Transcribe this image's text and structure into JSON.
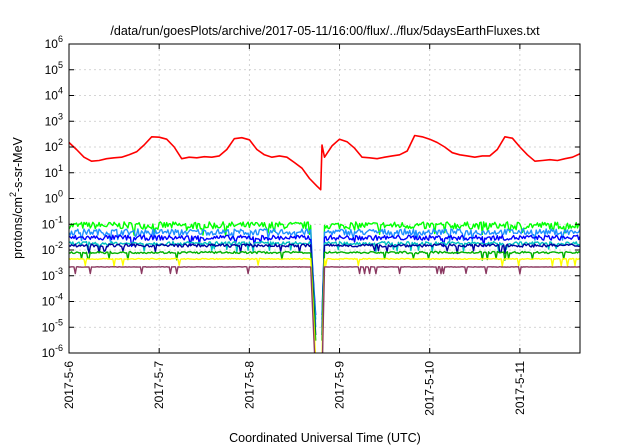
{
  "chart_data": {
    "type": "line",
    "title": "/data/run/goesPlots/archive/2017-05-11/16:00/flux/../flux/5daysEarthFluxes.txt",
    "xlabel": "Coordinated Universal Time (UTC)",
    "ylabel": {
      "prefix": "protons/cm",
      "sup": "2",
      "suffix": "-s-sr-MeV"
    },
    "y_scale": "log",
    "ylim": [
      1e-06,
      1000000.0
    ],
    "y_ticks": [
      {
        "value": 1e-06,
        "base": "10",
        "exp": "-6"
      },
      {
        "value": 1e-05,
        "base": "10",
        "exp": "-5"
      },
      {
        "value": 0.0001,
        "base": "10",
        "exp": "-4"
      },
      {
        "value": 0.001,
        "base": "10",
        "exp": "-3"
      },
      {
        "value": 0.01,
        "base": "10",
        "exp": "-2"
      },
      {
        "value": 0.1,
        "base": "10",
        "exp": "-1"
      },
      {
        "value": 1,
        "base": "10",
        "exp": "0"
      },
      {
        "value": 10,
        "base": "10",
        "exp": "1"
      },
      {
        "value": 100,
        "base": "10",
        "exp": "2"
      },
      {
        "value": 1000,
        "base": "10",
        "exp": "3"
      },
      {
        "value": 10000,
        "base": "10",
        "exp": "4"
      },
      {
        "value": 100000,
        "base": "10",
        "exp": "5"
      },
      {
        "value": 1000000,
        "base": "10",
        "exp": "6"
      }
    ],
    "x_range": [
      "2017-05-06 00:00",
      "2017-05-11 16:00"
    ],
    "x_ticks": [
      "2017-5-6",
      "2017-5-7",
      "2017-5-8",
      "2017-5-9",
      "2017-5-10",
      "2017-5-11"
    ],
    "grid": true,
    "gap": {
      "start": "2017-05-08 16:30",
      "end": "2017-05-08 19:20"
    },
    "series": [
      {
        "color": "#ff0000",
        "values": [
          [
            "2017-05-06 00:00",
            150
          ],
          [
            "2017-05-06 02:00",
            80
          ],
          [
            "2017-05-06 04:00",
            40
          ],
          [
            "2017-05-06 06:00",
            28
          ],
          [
            "2017-05-06 08:00",
            30
          ],
          [
            "2017-05-06 10:00",
            35
          ],
          [
            "2017-05-06 12:00",
            38
          ],
          [
            "2017-05-06 14:00",
            40
          ],
          [
            "2017-05-06 16:00",
            50
          ],
          [
            "2017-05-06 18:00",
            65
          ],
          [
            "2017-05-06 20:00",
            120
          ],
          [
            "2017-05-06 22:00",
            250
          ],
          [
            "2017-05-07 00:00",
            240
          ],
          [
            "2017-05-07 02:00",
            200
          ],
          [
            "2017-05-07 04:00",
            100
          ],
          [
            "2017-05-07 06:00",
            35
          ],
          [
            "2017-05-07 08:00",
            40
          ],
          [
            "2017-05-07 10:00",
            38
          ],
          [
            "2017-05-07 12:00",
            42
          ],
          [
            "2017-05-07 14:00",
            40
          ],
          [
            "2017-05-07 16:00",
            45
          ],
          [
            "2017-05-07 18:00",
            80
          ],
          [
            "2017-05-07 20:00",
            210
          ],
          [
            "2017-05-07 22:00",
            230
          ],
          [
            "2017-05-08 00:00",
            190
          ],
          [
            "2017-05-08 02:00",
            80
          ],
          [
            "2017-05-08 04:00",
            50
          ],
          [
            "2017-05-08 06:00",
            40
          ],
          [
            "2017-05-08 08:00",
            45
          ],
          [
            "2017-05-08 10:00",
            40
          ],
          [
            "2017-05-08 12:00",
            25
          ],
          [
            "2017-05-08 14:00",
            15
          ],
          [
            "2017-05-08 16:00",
            6
          ],
          [
            "2017-05-08 18:00",
            3
          ],
          [
            "2017-05-08 19:00",
            2.2
          ],
          [
            "2017-05-08 19:20",
            120
          ],
          [
            "2017-05-08 20:00",
            40
          ],
          [
            "2017-05-08 22:00",
            110
          ],
          [
            "2017-05-09 00:00",
            200
          ],
          [
            "2017-05-09 02:00",
            160
          ],
          [
            "2017-05-09 04:00",
            90
          ],
          [
            "2017-05-09 06:00",
            40
          ],
          [
            "2017-05-09 08:00",
            38
          ],
          [
            "2017-05-09 10:00",
            35
          ],
          [
            "2017-05-09 12:00",
            40
          ],
          [
            "2017-05-09 14:00",
            45
          ],
          [
            "2017-05-09 16:00",
            50
          ],
          [
            "2017-05-09 18:00",
            70
          ],
          [
            "2017-05-09 20:00",
            280
          ],
          [
            "2017-05-09 22:00",
            250
          ],
          [
            "2017-05-10 00:00",
            200
          ],
          [
            "2017-05-10 02:00",
            150
          ],
          [
            "2017-05-10 04:00",
            100
          ],
          [
            "2017-05-10 06:00",
            60
          ],
          [
            "2017-05-10 08:00",
            50
          ],
          [
            "2017-05-10 10:00",
            45
          ],
          [
            "2017-05-10 12:00",
            40
          ],
          [
            "2017-05-10 14:00",
            45
          ],
          [
            "2017-05-10 16:00",
            45
          ],
          [
            "2017-05-10 18:00",
            80
          ],
          [
            "2017-05-10 20:00",
            250
          ],
          [
            "2017-05-10 22:00",
            220
          ],
          [
            "2017-05-11 00:00",
            100
          ],
          [
            "2017-05-11 02:00",
            50
          ],
          [
            "2017-05-11 04:00",
            28
          ],
          [
            "2017-05-11 06:00",
            30
          ],
          [
            "2017-05-11 08:00",
            32
          ],
          [
            "2017-05-11 10:00",
            30
          ],
          [
            "2017-05-11 12:00",
            35
          ],
          [
            "2017-05-11 14:00",
            40
          ],
          [
            "2017-05-11 16:00",
            55
          ]
        ]
      },
      {
        "color": "#00ff00",
        "level": 0.09,
        "noise": 0.07,
        "decay_to": 1e-07
      },
      {
        "color": "#1e90ff",
        "level": 0.05,
        "noise": 0.06,
        "decay_to": 1e-05
      },
      {
        "color": "#0000ff",
        "level": 0.03,
        "noise": 0.05,
        "decay_to": 3e-05
      },
      {
        "color": "#00c0c0",
        "level": 0.018,
        "noise": 0.035,
        "decay_to": 2e-05
      },
      {
        "color": "#0000a0",
        "level": 0.015,
        "noise": 0.03,
        "decay_to": 5e-06
      },
      {
        "color": "#00b000",
        "level": 0.008,
        "noise": 0.02,
        "decay_to": 3e-06
      },
      {
        "color": "#ffff00",
        "level": 0.0045,
        "noise": 0.01,
        "decay_to": 5e-07
      },
      {
        "color": "#8b3a62",
        "level": 0.0022,
        "noise": 0.005,
        "decay_to": 1e-07
      }
    ]
  }
}
